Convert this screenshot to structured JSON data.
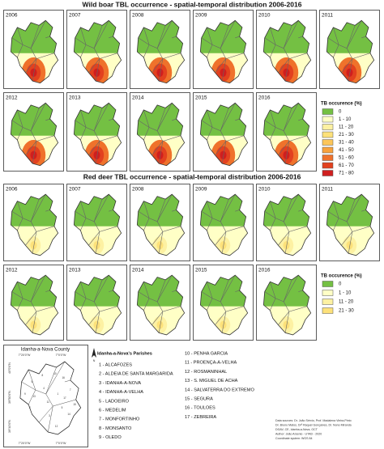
{
  "sections": [
    {
      "title": "Wild boar TBL occurrence - spatial-temporal distribution 2006-2016",
      "years": [
        "2006",
        "2007",
        "2008",
        "2009",
        "2010",
        "2011",
        "2012",
        "2013",
        "2014",
        "2015",
        "2016"
      ],
      "legend": {
        "title": "TB occurence (%)",
        "items": [
          {
            "label": "0",
            "color": "#74c043"
          },
          {
            "label": "1 - 10",
            "color": "#ffffc6"
          },
          {
            "label": "11 - 20",
            "color": "#fdf1a2"
          },
          {
            "label": "21 - 30",
            "color": "#fde17a"
          },
          {
            "label": "31 - 40",
            "color": "#fcc65a"
          },
          {
            "label": "41 - 50",
            "color": "#f8a23c"
          },
          {
            "label": "51 - 60",
            "color": "#ef722b"
          },
          {
            "label": "61 - 70",
            "color": "#e2411f"
          },
          {
            "label": "71 - 80",
            "color": "#cf1f1f"
          }
        ]
      }
    },
    {
      "title": "Red deer TBL occurrence - spatial-temporal distribution 2006-2016",
      "years": [
        "2006",
        "2007",
        "2008",
        "2009",
        "2010",
        "2011",
        "2012",
        "2013",
        "2014",
        "2015",
        "2016"
      ],
      "legend": {
        "title": "TB occurence (%)",
        "items": [
          {
            "label": "0",
            "color": "#74c043"
          },
          {
            "label": "1 - 10",
            "color": "#ffffc6"
          },
          {
            "label": "11 - 20",
            "color": "#fdf1a2"
          },
          {
            "label": "21 - 30",
            "color": "#fde17a"
          }
        ]
      }
    }
  ],
  "inset": {
    "title": "Idanha-a-Nova County",
    "numbers": [
      "1",
      "2",
      "3",
      "4",
      "5",
      "6",
      "7",
      "8",
      "9",
      "10",
      "11",
      "12",
      "13",
      "14",
      "15",
      "16",
      "17"
    ],
    "x_labels_top": [
      "7°20'0\"W",
      "7°0'0\"W"
    ],
    "x_labels_bottom": [
      "7°20'0\"W",
      "7°0'0\"W"
    ],
    "y_labels": [
      "40°0'0\"N",
      "39°50'0\"N",
      "39°40'0\"N"
    ]
  },
  "north": "N",
  "parishes": {
    "title": "Idanha-a-Nova's Parishes",
    "items": [
      "1 - ALCAFOZES",
      "2 - ALDEIA DE SANTA MARGARIDA",
      "3 - IDANHA-A-NOVA",
      "4 - IDANHA-A-VELHA",
      "5 - LADOEIRO",
      "6 - MEDELIM",
      "7 - MONFORTINHO",
      "8 - MONSANTO",
      "9 - OLEDO",
      "10 - PENHA GARCIA",
      "11 - PROENÇA-A-VELHA",
      "12 - ROSMANINHAL",
      "13 - S. MIGUEL DE ACHA",
      "14 - SALVATERRA DO EXTREMO",
      "15 - SEGURA",
      "16 - TOULOES",
      "17 - ZEBREIRA"
    ]
  },
  "credits": [
    "Data sources: Dr. João Sérvio, Prof. Madalena Vieira-Pinto",
    "Dr. Bruno Matos, Drª Raquel Gonçalves, Dr. Nuno Miranda",
    "DGAV, CE, Idanha-a-Nova, OCT",
    "Author: João Arsenio - UTAD - 2020",
    "Coordinate system: WGS 84"
  ]
}
